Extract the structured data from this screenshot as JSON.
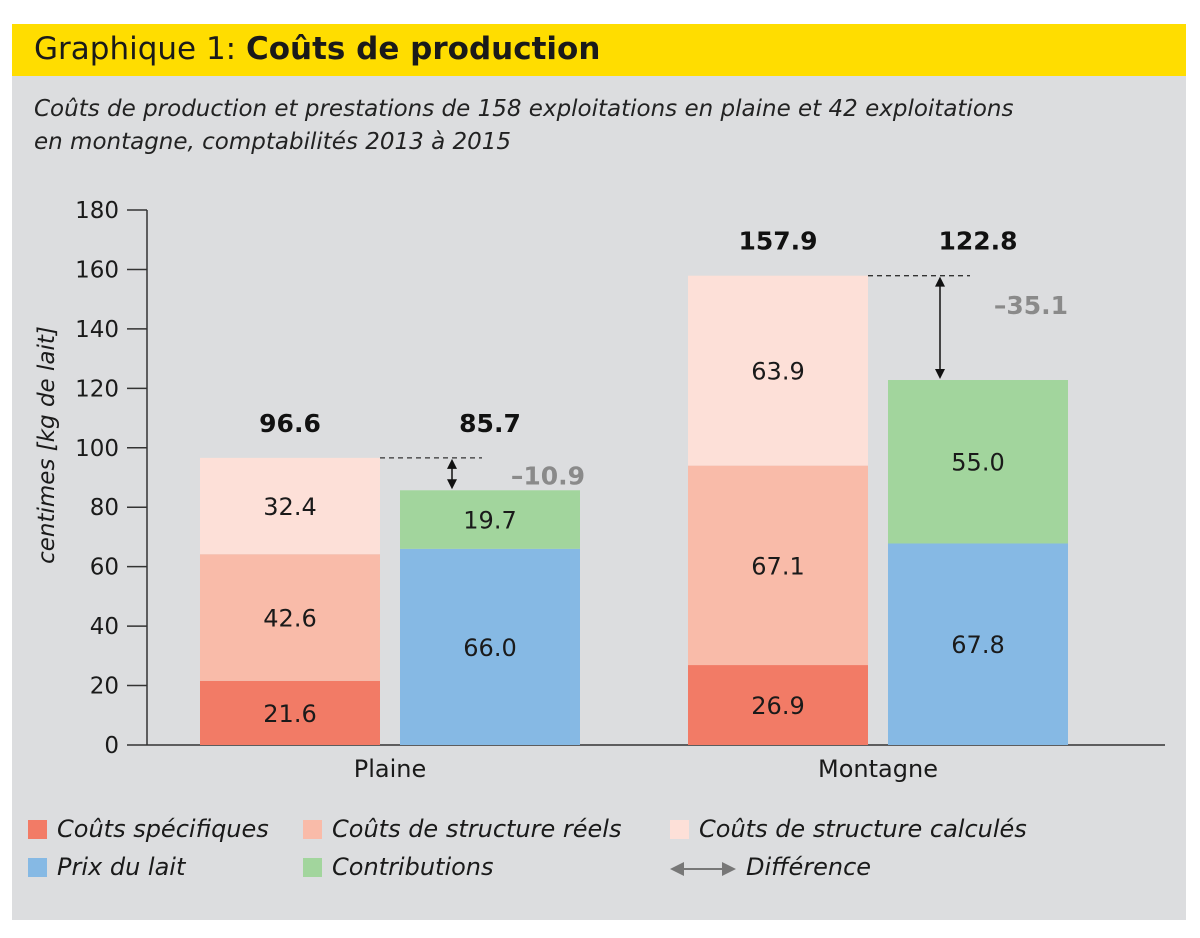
{
  "header": {
    "title_lead": "Graphique 1: ",
    "title_strong": "Coûts de production"
  },
  "subtitle_line1": "Coûts de production et prestations de 158 exploitations en plaine et 42 exploitations",
  "subtitle_line2": "en montagne, comptabilités 2013 à 2015",
  "colors": {
    "couts_specifiques": "#f27b66",
    "structure_reels": "#f9bba9",
    "structure_calcules": "#fde0d8",
    "prix_du_lait": "#86b9e4",
    "contributions": "#a2d59d",
    "difference_label": "#8a8a8a"
  },
  "legend": {
    "couts_specifiques": "Coûts spécifiques",
    "structure_reels": "Coûts de structure réels",
    "structure_calcules": "Coûts de structure calculés",
    "prix_du_lait": "Prix du lait",
    "contributions": "Contributions",
    "difference": "Différence"
  },
  "chart_data": {
    "type": "bar",
    "stacked": true,
    "ylabel": "centimes [kg de lait]",
    "ylim": [
      0,
      180
    ],
    "yticks": [
      "0",
      "20",
      "40",
      "60",
      "80",
      "100",
      "120",
      "140",
      "160",
      "180"
    ],
    "categories": [
      "Plaine",
      "Montagne"
    ],
    "groups": [
      {
        "category": "Plaine",
        "cost_bar": {
          "total_label": "96.6",
          "segments": [
            {
              "series": "Coûts spécifiques",
              "value": 21.6,
              "label": "21.6"
            },
            {
              "series": "Coûts de structure réels",
              "value": 42.6,
              "label": "42.6"
            },
            {
              "series": "Coûts de structure calculés",
              "value": 32.4,
              "label": "32.4"
            }
          ]
        },
        "revenue_bar": {
          "total_label": "85.7",
          "segments": [
            {
              "series": "Prix du lait",
              "value": 66.0,
              "label": "66.0"
            },
            {
              "series": "Contributions",
              "value": 19.7,
              "label": "19.7"
            }
          ]
        },
        "difference_label": "–10.9"
      },
      {
        "category": "Montagne",
        "cost_bar": {
          "total_label": "157.9",
          "segments": [
            {
              "series": "Coûts spécifiques",
              "value": 26.9,
              "label": "26.9"
            },
            {
              "series": "Coûts de structure réels",
              "value": 67.1,
              "label": "67.1"
            },
            {
              "series": "Coûts de structure calculés",
              "value": 63.9,
              "label": "63.9"
            }
          ]
        },
        "revenue_bar": {
          "total_label": "122.8",
          "segments": [
            {
              "series": "Prix du lait",
              "value": 67.8,
              "label": "67.8"
            },
            {
              "series": "Contributions",
              "value": 55.0,
              "label": "55.0"
            }
          ]
        },
        "difference_label": "–35.1"
      }
    ]
  }
}
